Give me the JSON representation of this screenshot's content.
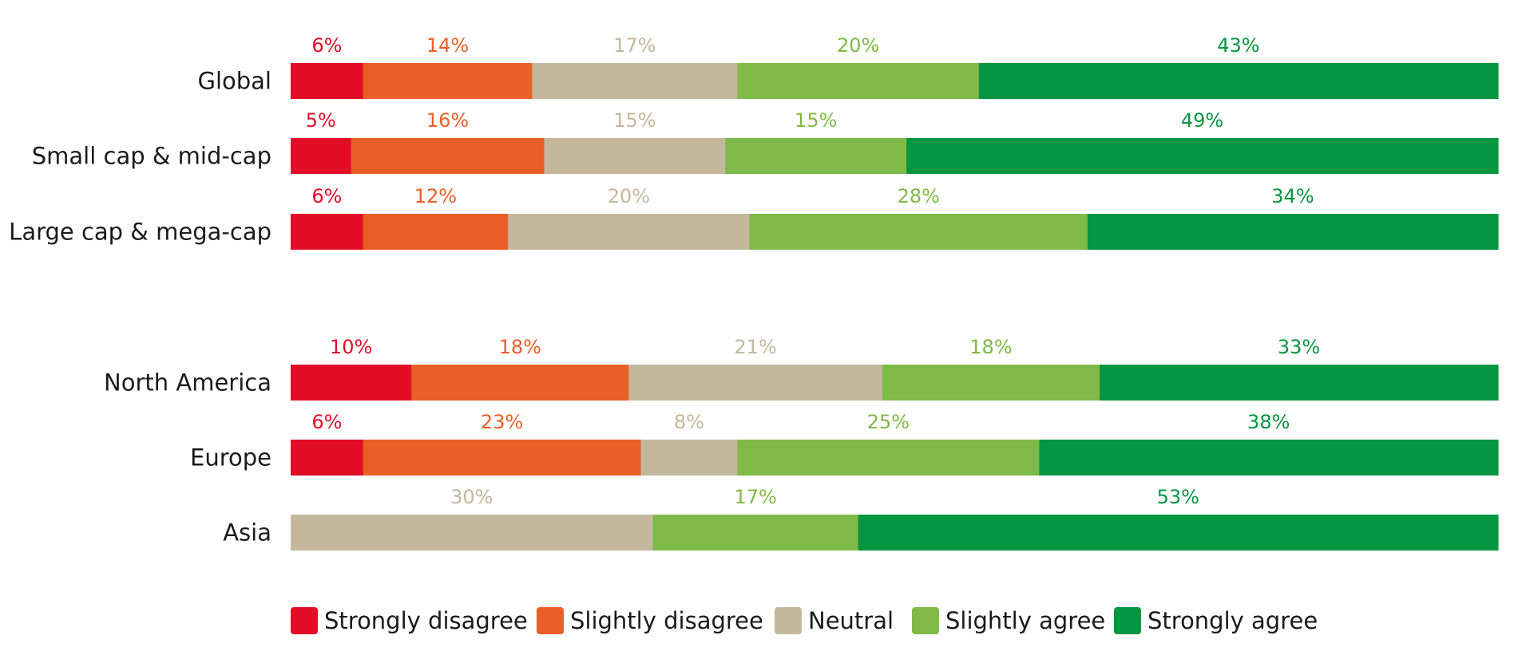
{
  "chart_data": {
    "type": "bar",
    "orientation": "horizontal",
    "stacked": true,
    "normalized": true,
    "title": "",
    "xlabel": "",
    "ylabel": "",
    "xlim": [
      0,
      100
    ],
    "grid": false,
    "legend_position": "bottom",
    "categories": [
      "Global",
      "Small cap & mid-cap",
      "Large cap & mega-cap",
      "North America",
      "Europe",
      "Asia"
    ],
    "series": [
      {
        "name": "Strongly disagree",
        "color": "#e20e27",
        "values": [
          6,
          5,
          6,
          10,
          6,
          0
        ],
        "labels": [
          "6%",
          "5%",
          "6%",
          "10%",
          "6%",
          ""
        ]
      },
      {
        "name": "Slightly disagree",
        "color": "#ea5f27",
        "values": [
          14,
          16,
          12,
          18,
          23,
          0
        ],
        "labels": [
          "14%",
          "16%",
          "12%",
          "18%",
          "23%",
          ""
        ]
      },
      {
        "name": "Neutral",
        "color": "#c4b79b",
        "values": [
          17,
          15,
          20,
          21,
          8,
          30
        ],
        "labels": [
          "17%",
          "15%",
          "20%",
          "21%",
          "8%",
          "30%"
        ]
      },
      {
        "name": "Slightly agree",
        "color": "#7fb947",
        "values": [
          20,
          15,
          28,
          18,
          25,
          17
        ],
        "labels": [
          "20%",
          "15%",
          "28%",
          "18%",
          "25%",
          "17%"
        ]
      },
      {
        "name": "Strongly agree",
        "color": "#069641",
        "values": [
          43,
          49,
          34,
          33,
          38,
          53
        ],
        "labels": [
          "43%",
          "49%",
          "34%",
          "33%",
          "38%",
          "53%"
        ]
      }
    ]
  }
}
